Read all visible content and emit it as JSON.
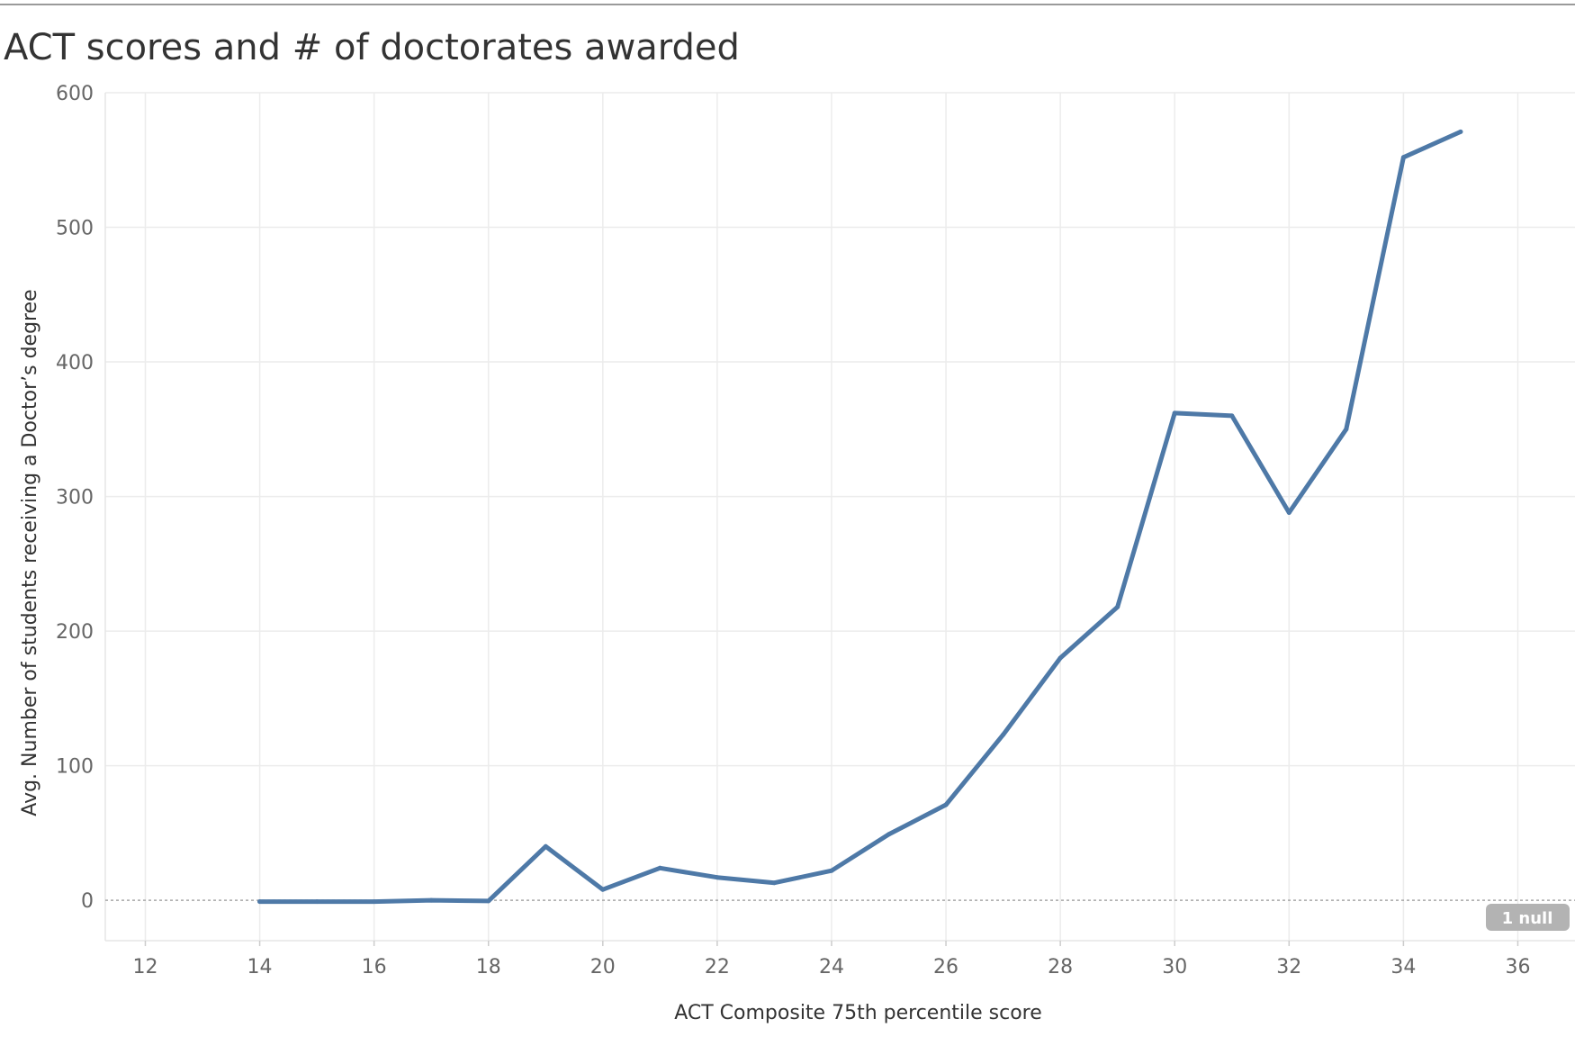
{
  "title": "ACT scores and # of doctorates awarded",
  "chart_data": {
    "type": "line",
    "title": "ACT scores and # of doctorates awarded",
    "xlabel": "ACT Composite 75th percentile score",
    "ylabel": "Avg. Number of students receiving a Doctor’s degree",
    "xlim": [
      11.3,
      37
    ],
    "ylim": [
      -30,
      600
    ],
    "xticks": [
      12,
      14,
      16,
      18,
      20,
      22,
      24,
      26,
      28,
      30,
      32,
      34,
      36
    ],
    "yticks": [
      0,
      100,
      200,
      300,
      400,
      500,
      600
    ],
    "grid": true,
    "line_color": "#4e79a7",
    "series": [
      {
        "x": [
          14,
          15,
          16,
          17,
          18,
          19,
          20,
          21,
          22,
          23,
          24,
          25,
          26,
          27,
          28,
          29,
          30,
          31,
          32,
          33,
          34,
          35
        ],
        "values": [
          -1,
          -1,
          -1,
          0,
          -0.5,
          40,
          8,
          24,
          17,
          13,
          22,
          49,
          71,
          123,
          180,
          218,
          362,
          360,
          288,
          350,
          552,
          571
        ]
      }
    ],
    "null_indicator": "1 null"
  }
}
